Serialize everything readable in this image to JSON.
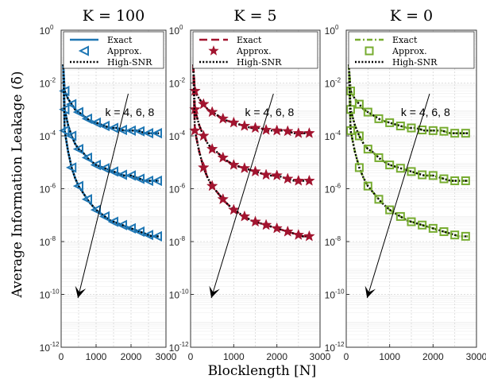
{
  "chart_data": [
    {
      "type": "line",
      "title": "K = 100",
      "xlabel": "Blocklength [N]",
      "ylabel": "Average Information Leakage (δ̄)",
      "xlim": [
        0,
        3000
      ],
      "ylim_exponent": [
        -12,
        0
      ],
      "yscale": "log",
      "grid": true,
      "legend_position": "top",
      "legend": [
        "Exact",
        "Approx.",
        "High-SNR"
      ],
      "colors": {
        "exact": "#1f77b4",
        "approx": "#1f77b4",
        "high_snr": "#000000"
      },
      "annotation": "k = 4, 6, 8",
      "x": [
        100,
        200,
        300,
        400,
        500,
        600,
        800,
        1000,
        1200,
        1400,
        1600,
        1800,
        2000,
        2200,
        2400,
        2600,
        2800
      ],
      "series": [
        {
          "k": 4,
          "log10_y": [
            -2.3,
            -2.6,
            -2.8,
            -3.0,
            -3.1,
            -3.2,
            -3.4,
            -3.5,
            -3.6,
            -3.7,
            -3.7,
            -3.8,
            -3.8,
            -3.8,
            -3.9,
            -3.9,
            -3.9
          ]
        },
        {
          "k": 6,
          "log10_y": [
            -3.0,
            -3.6,
            -4.0,
            -4.3,
            -4.5,
            -4.6,
            -4.9,
            -5.1,
            -5.2,
            -5.3,
            -5.4,
            -5.5,
            -5.5,
            -5.6,
            -5.7,
            -5.7,
            -5.7
          ]
        },
        {
          "k": 8,
          "log10_y": [
            -3.8,
            -4.6,
            -5.2,
            -5.6,
            -5.9,
            -6.1,
            -6.5,
            -6.8,
            -7.0,
            -7.2,
            -7.3,
            -7.4,
            -7.5,
            -7.6,
            -7.7,
            -7.8,
            -7.8
          ]
        }
      ],
      "markers_x": [
        100,
        300,
        500,
        750,
        1000,
        1250,
        1500,
        1750,
        2000,
        2250,
        2500,
        2750
      ],
      "marker": "triangle-left"
    },
    {
      "type": "line",
      "title": "K = 5",
      "xlim": [
        0,
        3000
      ],
      "ylim_exponent": [
        -12,
        0
      ],
      "yscale": "log",
      "grid": true,
      "legend_position": "top",
      "legend": [
        "Exact",
        "Approx.",
        "High-SNR"
      ],
      "colors": {
        "exact": "#a2142f",
        "approx": "#a2142f",
        "high_snr": "#000000"
      },
      "annotation": "k = 4, 6, 8",
      "x": [
        100,
        200,
        300,
        400,
        500,
        600,
        800,
        1000,
        1200,
        1400,
        1600,
        1800,
        2000,
        2200,
        2400,
        2600,
        2800
      ],
      "series": [
        {
          "k": 4,
          "log10_y": [
            -2.3,
            -2.6,
            -2.8,
            -3.0,
            -3.1,
            -3.2,
            -3.4,
            -3.5,
            -3.6,
            -3.7,
            -3.7,
            -3.8,
            -3.8,
            -3.8,
            -3.9,
            -3.9,
            -3.9
          ]
        },
        {
          "k": 6,
          "log10_y": [
            -3.0,
            -3.6,
            -4.0,
            -4.3,
            -4.5,
            -4.6,
            -4.9,
            -5.1,
            -5.2,
            -5.3,
            -5.4,
            -5.5,
            -5.5,
            -5.6,
            -5.7,
            -5.7,
            -5.7
          ]
        },
        {
          "k": 8,
          "log10_y": [
            -3.8,
            -4.6,
            -5.2,
            -5.6,
            -5.9,
            -6.1,
            -6.5,
            -6.8,
            -7.0,
            -7.2,
            -7.3,
            -7.4,
            -7.5,
            -7.6,
            -7.7,
            -7.8,
            -7.8
          ]
        }
      ],
      "markers_x": [
        100,
        300,
        500,
        750,
        1000,
        1250,
        1500,
        1750,
        2000,
        2250,
        2500,
        2750
      ],
      "marker": "star"
    },
    {
      "type": "line",
      "title": "K = 0",
      "xlim": [
        0,
        3000
      ],
      "ylim_exponent": [
        -12,
        0
      ],
      "yscale": "log",
      "grid": true,
      "legend_position": "top",
      "legend": [
        "Exact",
        "Approx.",
        "High-SNR"
      ],
      "colors": {
        "exact": "#77ac30",
        "approx": "#77ac30",
        "high_snr": "#000000"
      },
      "annotation": "k = 4, 6, 8",
      "x": [
        100,
        200,
        300,
        400,
        500,
        600,
        800,
        1000,
        1200,
        1400,
        1600,
        1800,
        2000,
        2200,
        2400,
        2600,
        2800
      ],
      "series": [
        {
          "k": 4,
          "log10_y": [
            -2.3,
            -2.6,
            -2.8,
            -3.0,
            -3.1,
            -3.2,
            -3.4,
            -3.5,
            -3.6,
            -3.7,
            -3.7,
            -3.8,
            -3.8,
            -3.8,
            -3.9,
            -3.9,
            -3.9
          ]
        },
        {
          "k": 6,
          "log10_y": [
            -3.0,
            -3.6,
            -4.0,
            -4.3,
            -4.5,
            -4.6,
            -4.9,
            -5.1,
            -5.2,
            -5.3,
            -5.4,
            -5.5,
            -5.5,
            -5.6,
            -5.7,
            -5.7,
            -5.7
          ]
        },
        {
          "k": 8,
          "log10_y": [
            -3.8,
            -4.6,
            -5.2,
            -5.6,
            -5.9,
            -6.1,
            -6.5,
            -6.8,
            -7.0,
            -7.2,
            -7.3,
            -7.4,
            -7.5,
            -7.6,
            -7.7,
            -7.8,
            -7.8
          ]
        }
      ],
      "markers_x": [
        100,
        300,
        500,
        750,
        1000,
        1250,
        1500,
        1750,
        2000,
        2250,
        2500,
        2750
      ],
      "marker": "square"
    }
  ],
  "ytick_exponents": [
    0,
    -2,
    -4,
    -6,
    -8,
    -10,
    -12
  ],
  "xtick_values": [
    0,
    1000,
    2000,
    3000
  ]
}
